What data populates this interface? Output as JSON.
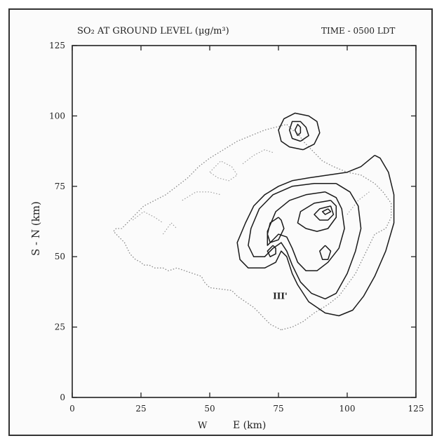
{
  "chart_data": {
    "type": "contour",
    "title": "SO₂ AT GROUND LEVEL (µg/m³)",
    "time_label": "TIME - 0500 LDT",
    "xlabel": "E (km)",
    "xlabel_prefix": "W",
    "ylabel": "S - N (km)",
    "xlim": [
      0,
      125
    ],
    "ylim": [
      0,
      125
    ],
    "x_ticks": [
      0,
      25,
      50,
      75,
      100,
      125
    ],
    "y_ticks": [
      0,
      25,
      50,
      75,
      100,
      125
    ],
    "annotation": "III'",
    "annotation_pos": [
      73,
      35
    ],
    "coastline": [
      [
        76,
        24
      ],
      [
        72,
        26
      ],
      [
        70,
        28
      ],
      [
        68,
        30
      ],
      [
        66,
        32
      ],
      [
        63,
        34
      ],
      [
        60,
        36
      ],
      [
        58,
        38
      ],
      [
        50,
        39
      ],
      [
        48,
        41
      ],
      [
        47,
        43
      ],
      [
        44,
        44
      ],
      [
        41,
        45
      ],
      [
        38,
        46
      ],
      [
        35,
        45
      ],
      [
        33,
        46
      ],
      [
        30,
        46
      ],
      [
        28,
        47
      ],
      [
        26,
        47
      ],
      [
        25,
        48
      ],
      [
        23,
        49
      ],
      [
        21,
        51
      ],
      [
        19,
        55
      ],
      [
        17,
        57
      ],
      [
        15,
        59
      ],
      [
        16,
        60
      ],
      [
        18,
        60
      ],
      [
        20,
        62
      ],
      [
        22,
        64
      ],
      [
        24,
        66
      ],
      [
        26,
        68
      ],
      [
        30,
        70
      ],
      [
        34,
        72
      ],
      [
        38,
        75
      ],
      [
        42,
        78
      ],
      [
        46,
        82
      ],
      [
        50,
        85
      ],
      [
        55,
        88
      ],
      [
        60,
        91
      ],
      [
        65,
        93
      ],
      [
        70,
        95
      ],
      [
        74,
        96
      ],
      [
        78,
        97
      ],
      [
        80,
        95
      ],
      [
        82,
        94
      ],
      [
        84,
        91
      ],
      [
        86,
        89
      ],
      [
        88,
        87
      ],
      [
        91,
        84
      ],
      [
        95,
        82
      ],
      [
        100,
        80
      ],
      [
        105,
        79
      ],
      [
        110,
        76
      ],
      [
        113,
        73
      ],
      [
        116,
        69
      ],
      [
        116,
        64
      ],
      [
        114,
        60
      ],
      [
        110,
        58
      ],
      [
        108,
        54
      ],
      [
        106,
        50
      ],
      [
        103,
        44
      ],
      [
        100,
        40
      ],
      [
        97,
        36
      ],
      [
        93,
        33
      ],
      [
        88,
        30
      ],
      [
        84,
        27
      ],
      [
        80,
        25
      ],
      [
        76,
        24
      ]
    ],
    "interior_lines": [
      [
        [
          22,
          63
        ],
        [
          26,
          66
        ],
        [
          30,
          64
        ],
        [
          33,
          62
        ]
      ],
      [
        [
          40,
          70
        ],
        [
          45,
          73
        ],
        [
          50,
          73
        ],
        [
          54,
          72
        ]
      ],
      [
        [
          50,
          80
        ],
        [
          54,
          84
        ],
        [
          58,
          82
        ],
        [
          60,
          79
        ],
        [
          57,
          77
        ],
        [
          53,
          78
        ],
        [
          50,
          80
        ]
      ],
      [
        [
          62,
          83
        ],
        [
          66,
          86
        ],
        [
          70,
          88
        ],
        [
          73,
          87
        ]
      ],
      [
        [
          33,
          58
        ],
        [
          36,
          62
        ],
        [
          38,
          60
        ]
      ],
      [
        [
          100,
          65
        ],
        [
          104,
          70
        ],
        [
          108,
          73
        ]
      ]
    ],
    "contours": [
      [
        [
          84,
          88
        ],
        [
          79,
          89
        ],
        [
          76,
          91
        ],
        [
          75,
          95
        ],
        [
          77,
          99
        ],
        [
          81,
          101
        ],
        [
          86,
          100
        ],
        [
          89,
          98
        ],
        [
          90,
          94
        ],
        [
          88,
          90
        ],
        [
          84,
          88
        ]
      ],
      [
        [
          83,
          91
        ],
        [
          80,
          92
        ],
        [
          79,
          95
        ],
        [
          80,
          98
        ],
        [
          83,
          98
        ],
        [
          85,
          96
        ],
        [
          86,
          93
        ],
        [
          83,
          91
        ]
      ],
      [
        [
          82,
          93
        ],
        [
          81,
          95
        ],
        [
          82,
          97
        ],
        [
          83,
          96
        ],
        [
          83,
          94
        ],
        [
          82,
          93
        ]
      ],
      [
        [
          110,
          86
        ],
        [
          105,
          82
        ],
        [
          100,
          80
        ],
        [
          93,
          79
        ],
        [
          86,
          78
        ],
        [
          80,
          77
        ],
        [
          75,
          75
        ],
        [
          70,
          72
        ],
        [
          66,
          68
        ],
        [
          63,
          62
        ],
        [
          60,
          55
        ],
        [
          61,
          49
        ],
        [
          64,
          46
        ],
        [
          70,
          46
        ],
        [
          74,
          48
        ],
        [
          76,
          52
        ],
        [
          78,
          50
        ],
        [
          80,
          44
        ],
        [
          82,
          40
        ],
        [
          86,
          34
        ],
        [
          92,
          30
        ],
        [
          97,
          29
        ],
        [
          102,
          31
        ],
        [
          106,
          36
        ],
        [
          110,
          43
        ],
        [
          114,
          52
        ],
        [
          117,
          62
        ],
        [
          117,
          72
        ],
        [
          115,
          80
        ],
        [
          112,
          85
        ],
        [
          110,
          86
        ]
      ],
      [
        [
          96,
          76
        ],
        [
          88,
          76
        ],
        [
          80,
          75
        ],
        [
          73,
          72
        ],
        [
          68,
          67
        ],
        [
          65,
          60
        ],
        [
          64,
          54
        ],
        [
          66,
          50
        ],
        [
          70,
          50
        ],
        [
          73,
          53
        ],
        [
          76,
          55
        ],
        [
          78,
          52
        ],
        [
          80,
          47
        ],
        [
          83,
          41
        ],
        [
          87,
          37
        ],
        [
          92,
          35
        ],
        [
          96,
          37
        ],
        [
          100,
          44
        ],
        [
          103,
          52
        ],
        [
          105,
          60
        ],
        [
          104,
          68
        ],
        [
          101,
          73
        ],
        [
          96,
          76
        ]
      ],
      [
        [
          92,
          73
        ],
        [
          85,
          72
        ],
        [
          79,
          70
        ],
        [
          74,
          66
        ],
        [
          71,
          59
        ],
        [
          71,
          54
        ],
        [
          73,
          56
        ],
        [
          75,
          58
        ],
        [
          78,
          57
        ],
        [
          80,
          53
        ],
        [
          82,
          48
        ],
        [
          85,
          45
        ],
        [
          89,
          45
        ],
        [
          93,
          48
        ],
        [
          97,
          53
        ],
        [
          99,
          60
        ],
        [
          98,
          67
        ],
        [
          96,
          71
        ],
        [
          92,
          73
        ]
      ],
      [
        [
          94,
          70
        ],
        [
          88,
          69
        ],
        [
          83,
          66
        ],
        [
          82,
          62
        ],
        [
          85,
          60
        ],
        [
          89,
          59
        ],
        [
          93,
          60
        ],
        [
          96,
          64
        ],
        [
          96,
          68
        ],
        [
          94,
          70
        ]
      ],
      [
        [
          94,
          68
        ],
        [
          90,
          67
        ],
        [
          88,
          65
        ],
        [
          90,
          63
        ],
        [
          93,
          63
        ],
        [
          95,
          65
        ],
        [
          94,
          68
        ]
      ],
      [
        [
          93,
          67
        ],
        [
          91,
          66
        ],
        [
          92,
          65
        ],
        [
          94,
          66
        ],
        [
          93,
          67
        ]
      ],
      [
        [
          75,
          64
        ],
        [
          72,
          62
        ],
        [
          71,
          58
        ],
        [
          72,
          55
        ],
        [
          75,
          56
        ],
        [
          77,
          60
        ],
        [
          76,
          63
        ],
        [
          75,
          64
        ]
      ],
      [
        [
          73,
          54
        ],
        [
          71,
          52
        ],
        [
          72,
          50
        ],
        [
          74,
          51
        ],
        [
          74,
          53
        ],
        [
          73,
          54
        ]
      ],
      [
        [
          92,
          54
        ],
        [
          90,
          52
        ],
        [
          91,
          49
        ],
        [
          93,
          49
        ],
        [
          94,
          52
        ],
        [
          92,
          54
        ]
      ]
    ]
  }
}
